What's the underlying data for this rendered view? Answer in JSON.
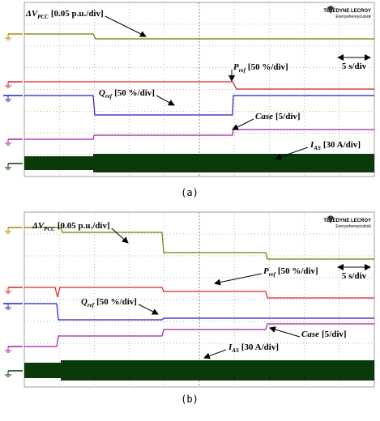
{
  "panels": [
    {
      "caption": "(a)",
      "logo": {
        "brand": "TELEDYNE LECROY",
        "tagline": "Everywhereyoulook"
      },
      "timescale": "5 s/div",
      "labels": {
        "dv": {
          "main": "ΔV",
          "sub": "PCC",
          "scale": "[0.05 p.u./div]"
        },
        "p": {
          "main": "P",
          "sub": "ref",
          "scale": "[50 %/div]"
        },
        "q": {
          "main": "Q",
          "sub": "ref",
          "scale": "[50 %/div]"
        },
        "case": {
          "main": "Case",
          "scale": "[5/div]"
        },
        "ias": {
          "main": "I",
          "sub": "AS",
          "scale": "[30 A/div]"
        }
      }
    },
    {
      "caption": "(b)",
      "logo": {
        "brand": "TELEDYNE LECROY",
        "tagline": "Everywhereyoulook"
      },
      "timescale": "5 s/div",
      "labels": {
        "dv": {
          "main": "ΔV",
          "sub": "PCC",
          "scale": "[0.05 p.u./div]"
        },
        "p": {
          "main": "P",
          "sub": "ref",
          "scale": "[50 %/div]"
        },
        "q": {
          "main": "Q",
          "sub": "ref",
          "scale": "[50 %/div]"
        },
        "case": {
          "main": "Case",
          "scale": "[5/div]"
        },
        "ias": {
          "main": "I",
          "sub": "AS",
          "scale": "[30 A/div]"
        }
      }
    }
  ]
}
